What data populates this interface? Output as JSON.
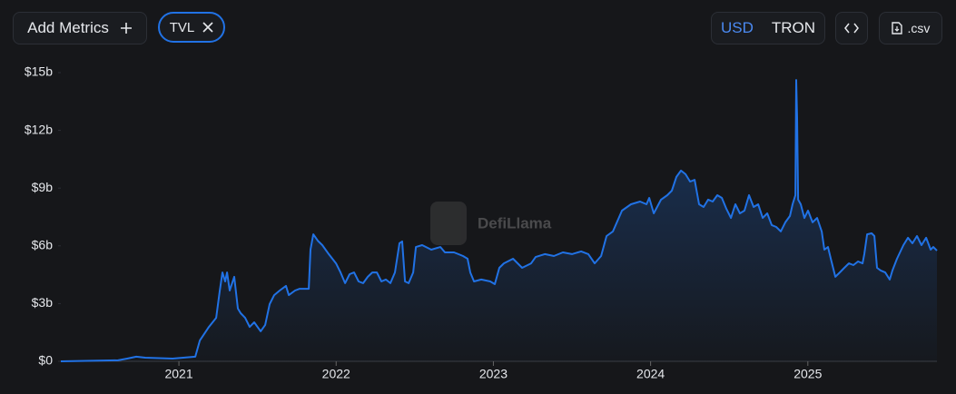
{
  "ui": {
    "add_metrics": "Add Metrics",
    "chip": "TVL",
    "currencies": [
      "USD",
      "TRON"
    ],
    "csv": ".csv",
    "watermark": "DefiLlama"
  },
  "chart_data": {
    "type": "line",
    "color": "#2172e5",
    "x": [
      2020.249,
      2020.613,
      2020.671,
      2020.729,
      2020.786,
      2020.96,
      2021.104,
      2021.133,
      2021.191,
      2021.237,
      2021.26,
      2021.277,
      2021.294,
      2021.306,
      2021.323,
      2021.352,
      2021.375,
      2021.393,
      2021.421,
      2021.45,
      2021.479,
      2021.52,
      2021.549,
      2021.577,
      2021.606,
      2021.641,
      2021.681,
      2021.699,
      2021.739,
      2021.768,
      2021.826,
      2021.837,
      2021.855,
      2021.883,
      2021.912,
      2021.953,
      2021.999,
      2022.028,
      2022.057,
      2022.086,
      2022.114,
      2022.143,
      2022.172,
      2022.201,
      2022.23,
      2022.259,
      2022.288,
      2022.316,
      2022.345,
      2022.374,
      2022.403,
      2022.42,
      2022.438,
      2022.461,
      2022.49,
      2022.507,
      2022.547,
      2022.605,
      2022.663,
      2022.692,
      2022.75,
      2022.807,
      2022.836,
      2022.853,
      2022.877,
      2022.923,
      2022.98,
      2023.009,
      2023.038,
      2023.067,
      2023.125,
      2023.183,
      2023.24,
      2023.269,
      2023.327,
      2023.385,
      2023.442,
      2023.5,
      2023.558,
      2023.604,
      2023.644,
      2023.685,
      2023.72,
      2023.76,
      2023.818,
      2023.875,
      2023.933,
      2023.974,
      2023.991,
      2024.02,
      2024.066,
      2024.106,
      2024.135,
      2024.164,
      2024.193,
      2024.222,
      2024.251,
      2024.28,
      2024.308,
      2024.337,
      2024.366,
      2024.395,
      2024.424,
      2024.453,
      2024.482,
      2024.511,
      2024.539,
      2024.568,
      2024.597,
      2024.626,
      2024.655,
      2024.684,
      2024.713,
      2024.742,
      2024.77,
      2024.799,
      2024.828,
      2024.857,
      2024.886,
      2024.903,
      2024.921,
      2024.926,
      2024.932,
      2024.938,
      2024.955,
      2024.978,
      2025.001,
      2025.03,
      2025.059,
      2025.088,
      2025.105,
      2025.128,
      2025.146,
      2025.175,
      2025.203,
      2025.232,
      2025.261,
      2025.29,
      2025.319,
      2025.348,
      2025.359,
      2025.377,
      2025.406,
      2025.423,
      2025.44,
      2025.463,
      2025.492,
      2025.521,
      2025.538,
      2025.567,
      2025.608,
      2025.637,
      2025.665,
      2025.694,
      2025.723,
      2025.752,
      2025.781,
      2025.798,
      2025.821
    ],
    "values": [
      0,
      0.05,
      0.14,
      0.24,
      0.19,
      0.14,
      0.24,
      1.08,
      1.79,
      2.26,
      3.68,
      4.62,
      4.15,
      4.62,
      3.68,
      4.39,
      2.74,
      2.5,
      2.26,
      1.79,
      2.03,
      1.56,
      1.89,
      2.97,
      3.44,
      3.68,
      3.92,
      3.44,
      3.68,
      3.77,
      3.77,
      5.8,
      6.6,
      6.27,
      6.04,
      5.57,
      5.09,
      4.62,
      4.06,
      4.53,
      4.62,
      4.15,
      4.06,
      4.39,
      4.62,
      4.62,
      4.15,
      4.25,
      4.06,
      4.62,
      6.13,
      6.23,
      4.15,
      4.06,
      4.62,
      5.94,
      6.04,
      5.8,
      5.94,
      5.66,
      5.66,
      5.47,
      5.33,
      4.62,
      4.15,
      4.25,
      4.15,
      4.01,
      4.86,
      5.09,
      5.33,
      4.86,
      5.09,
      5.42,
      5.57,
      5.47,
      5.66,
      5.57,
      5.71,
      5.57,
      5.09,
      5.47,
      6.51,
      6.75,
      7.83,
      8.16,
      8.3,
      8.16,
      8.49,
      7.69,
      8.4,
      8.63,
      8.87,
      9.58,
      9.91,
      9.72,
      9.34,
      9.43,
      8.16,
      8.02,
      8.4,
      8.3,
      8.63,
      8.49,
      7.92,
      7.45,
      8.16,
      7.69,
      7.83,
      8.63,
      8.02,
      8.16,
      7.45,
      7.69,
      7.08,
      6.98,
      6.75,
      7.22,
      7.55,
      8.16,
      8.63,
      14.62,
      12.64,
      8.4,
      8.16,
      7.45,
      7.83,
      7.22,
      7.45,
      6.75,
      5.8,
      5.94,
      5.33,
      4.39,
      4.62,
      4.86,
      5.09,
      5,
      5.19,
      5.09,
      5.57,
      6.6,
      6.65,
      6.51,
      4.86,
      4.72,
      4.62,
      4.25,
      4.72,
      5.33,
      6.04,
      6.42,
      6.13,
      6.51,
      6.04,
      6.42,
      5.8,
      5.94,
      5.75
    ],
    "xlim": [
      2020.249,
      2025.821
    ],
    "xticks": [
      2021,
      2022,
      2023,
      2024,
      2025
    ],
    "ylim": [
      0,
      15
    ],
    "yticks": [
      {
        "value": 0,
        "label": "$0"
      },
      {
        "value": 3,
        "label": "$3b"
      },
      {
        "value": 6,
        "label": "$6b"
      },
      {
        "value": 9,
        "label": "$9b"
      },
      {
        "value": 12,
        "label": "$12b"
      },
      {
        "value": 15,
        "label": "$15b"
      }
    ],
    "grid": false
  }
}
